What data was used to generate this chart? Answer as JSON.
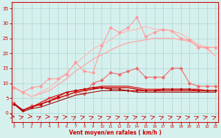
{
  "x": [
    0,
    1,
    2,
    3,
    4,
    5,
    6,
    7,
    8,
    9,
    10,
    11,
    12,
    13,
    14,
    15,
    16,
    17,
    18,
    19,
    20,
    21,
    22,
    23
  ],
  "background_color": "#d6f0ee",
  "grid_color": "#b0d8d4",
  "xlabel": "Vent moyen/en rafales ( km/h )",
  "xlabel_color": "#cc0000",
  "tick_color": "#cc0000",
  "ylim": [
    -3,
    37
  ],
  "xlim": [
    -0.3,
    23.3
  ],
  "yticks": [
    0,
    5,
    10,
    15,
    20,
    25,
    30,
    35
  ],
  "lines": [
    {
      "label": "pink_smooth_upper",
      "color": "#ffaaaa",
      "lw": 1.0,
      "marker": null,
      "data": [
        8.5,
        7.0,
        5.5,
        6.5,
        7.5,
        9.5,
        11.5,
        14.0,
        16.0,
        18.0,
        19.5,
        21.0,
        22.5,
        23.5,
        24.0,
        24.5,
        25.0,
        25.0,
        25.0,
        24.5,
        24.0,
        22.5,
        21.5,
        19.0
      ]
    },
    {
      "label": "pink_smooth_lower",
      "color": "#ffbbbb",
      "lw": 1.0,
      "marker": null,
      "data": [
        8.5,
        7.0,
        5.5,
        7.0,
        8.5,
        11.0,
        13.5,
        16.5,
        19.0,
        21.5,
        23.0,
        24.5,
        26.5,
        27.5,
        28.0,
        29.0,
        28.0,
        28.0,
        27.5,
        26.5,
        25.0,
        23.0,
        22.0,
        19.0
      ]
    },
    {
      "label": "pink_jagged",
      "color": "#ff9999",
      "lw": 0.8,
      "marker": "D",
      "markersize": 2.5,
      "data": [
        8.5,
        7.0,
        8.5,
        9.0,
        11.5,
        11.5,
        13.0,
        17.0,
        14.0,
        13.5,
        22.5,
        28.5,
        27.0,
        28.5,
        32.0,
        25.5,
        27.0,
        28.0,
        27.5,
        25.0,
        24.5,
        22.0,
        22.0,
        22.0
      ]
    },
    {
      "label": "medium_pink_jagged",
      "color": "#ee6666",
      "lw": 0.8,
      "marker": "D",
      "markersize": 2.5,
      "data": [
        3.5,
        1.0,
        2.5,
        2.5,
        5.0,
        5.0,
        6.0,
        7.0,
        6.5,
        10.0,
        11.0,
        13.5,
        13.0,
        14.0,
        15.0,
        12.0,
        12.0,
        12.0,
        15.0,
        15.0,
        10.0,
        9.0,
        9.0,
        9.0
      ]
    },
    {
      "label": "red_smooth1",
      "color": "#dd2222",
      "lw": 1.0,
      "marker": null,
      "data": [
        3.0,
        1.0,
        2.0,
        3.5,
        5.0,
        6.0,
        7.0,
        7.5,
        8.0,
        8.5,
        9.0,
        9.0,
        9.0,
        9.0,
        8.5,
        8.0,
        8.0,
        8.0,
        8.0,
        8.0,
        8.0,
        8.0,
        7.5,
        7.5
      ]
    },
    {
      "label": "red_smooth2",
      "color": "#cc0000",
      "lw": 1.0,
      "marker": null,
      "data": [
        3.0,
        1.0,
        2.0,
        3.0,
        4.0,
        5.0,
        6.0,
        7.0,
        7.5,
        8.0,
        8.5,
        8.5,
        8.5,
        8.5,
        8.0,
        7.5,
        7.5,
        7.5,
        7.5,
        7.5,
        7.5,
        7.5,
        7.5,
        7.5
      ]
    },
    {
      "label": "dark_red_jagged",
      "color": "#bb0000",
      "lw": 0.8,
      "marker": "D",
      "markersize": 2.0,
      "data": [
        3.0,
        1.0,
        2.0,
        3.0,
        4.0,
        5.5,
        7.0,
        7.5,
        8.0,
        8.5,
        8.5,
        8.0,
        8.0,
        7.5,
        7.5,
        7.5,
        7.5,
        8.0,
        8.0,
        8.0,
        8.0,
        7.5,
        7.5,
        7.5
      ]
    },
    {
      "label": "darkest_red_bottom",
      "color": "#990000",
      "lw": 0.8,
      "marker": null,
      "data": [
        3.0,
        0.5,
        1.5,
        2.0,
        3.0,
        4.0,
        5.0,
        6.0,
        6.5,
        7.0,
        7.5,
        7.5,
        7.5,
        7.5,
        7.0,
        7.0,
        7.0,
        7.0,
        7.0,
        7.0,
        7.0,
        7.0,
        7.0,
        7.0
      ]
    }
  ],
  "arrow_angles": [
    85,
    100,
    85,
    110,
    90,
    115,
    95,
    110,
    100,
    105,
    100,
    105,
    100,
    105,
    100,
    105,
    100,
    105,
    100,
    105,
    100,
    105,
    100,
    105
  ]
}
